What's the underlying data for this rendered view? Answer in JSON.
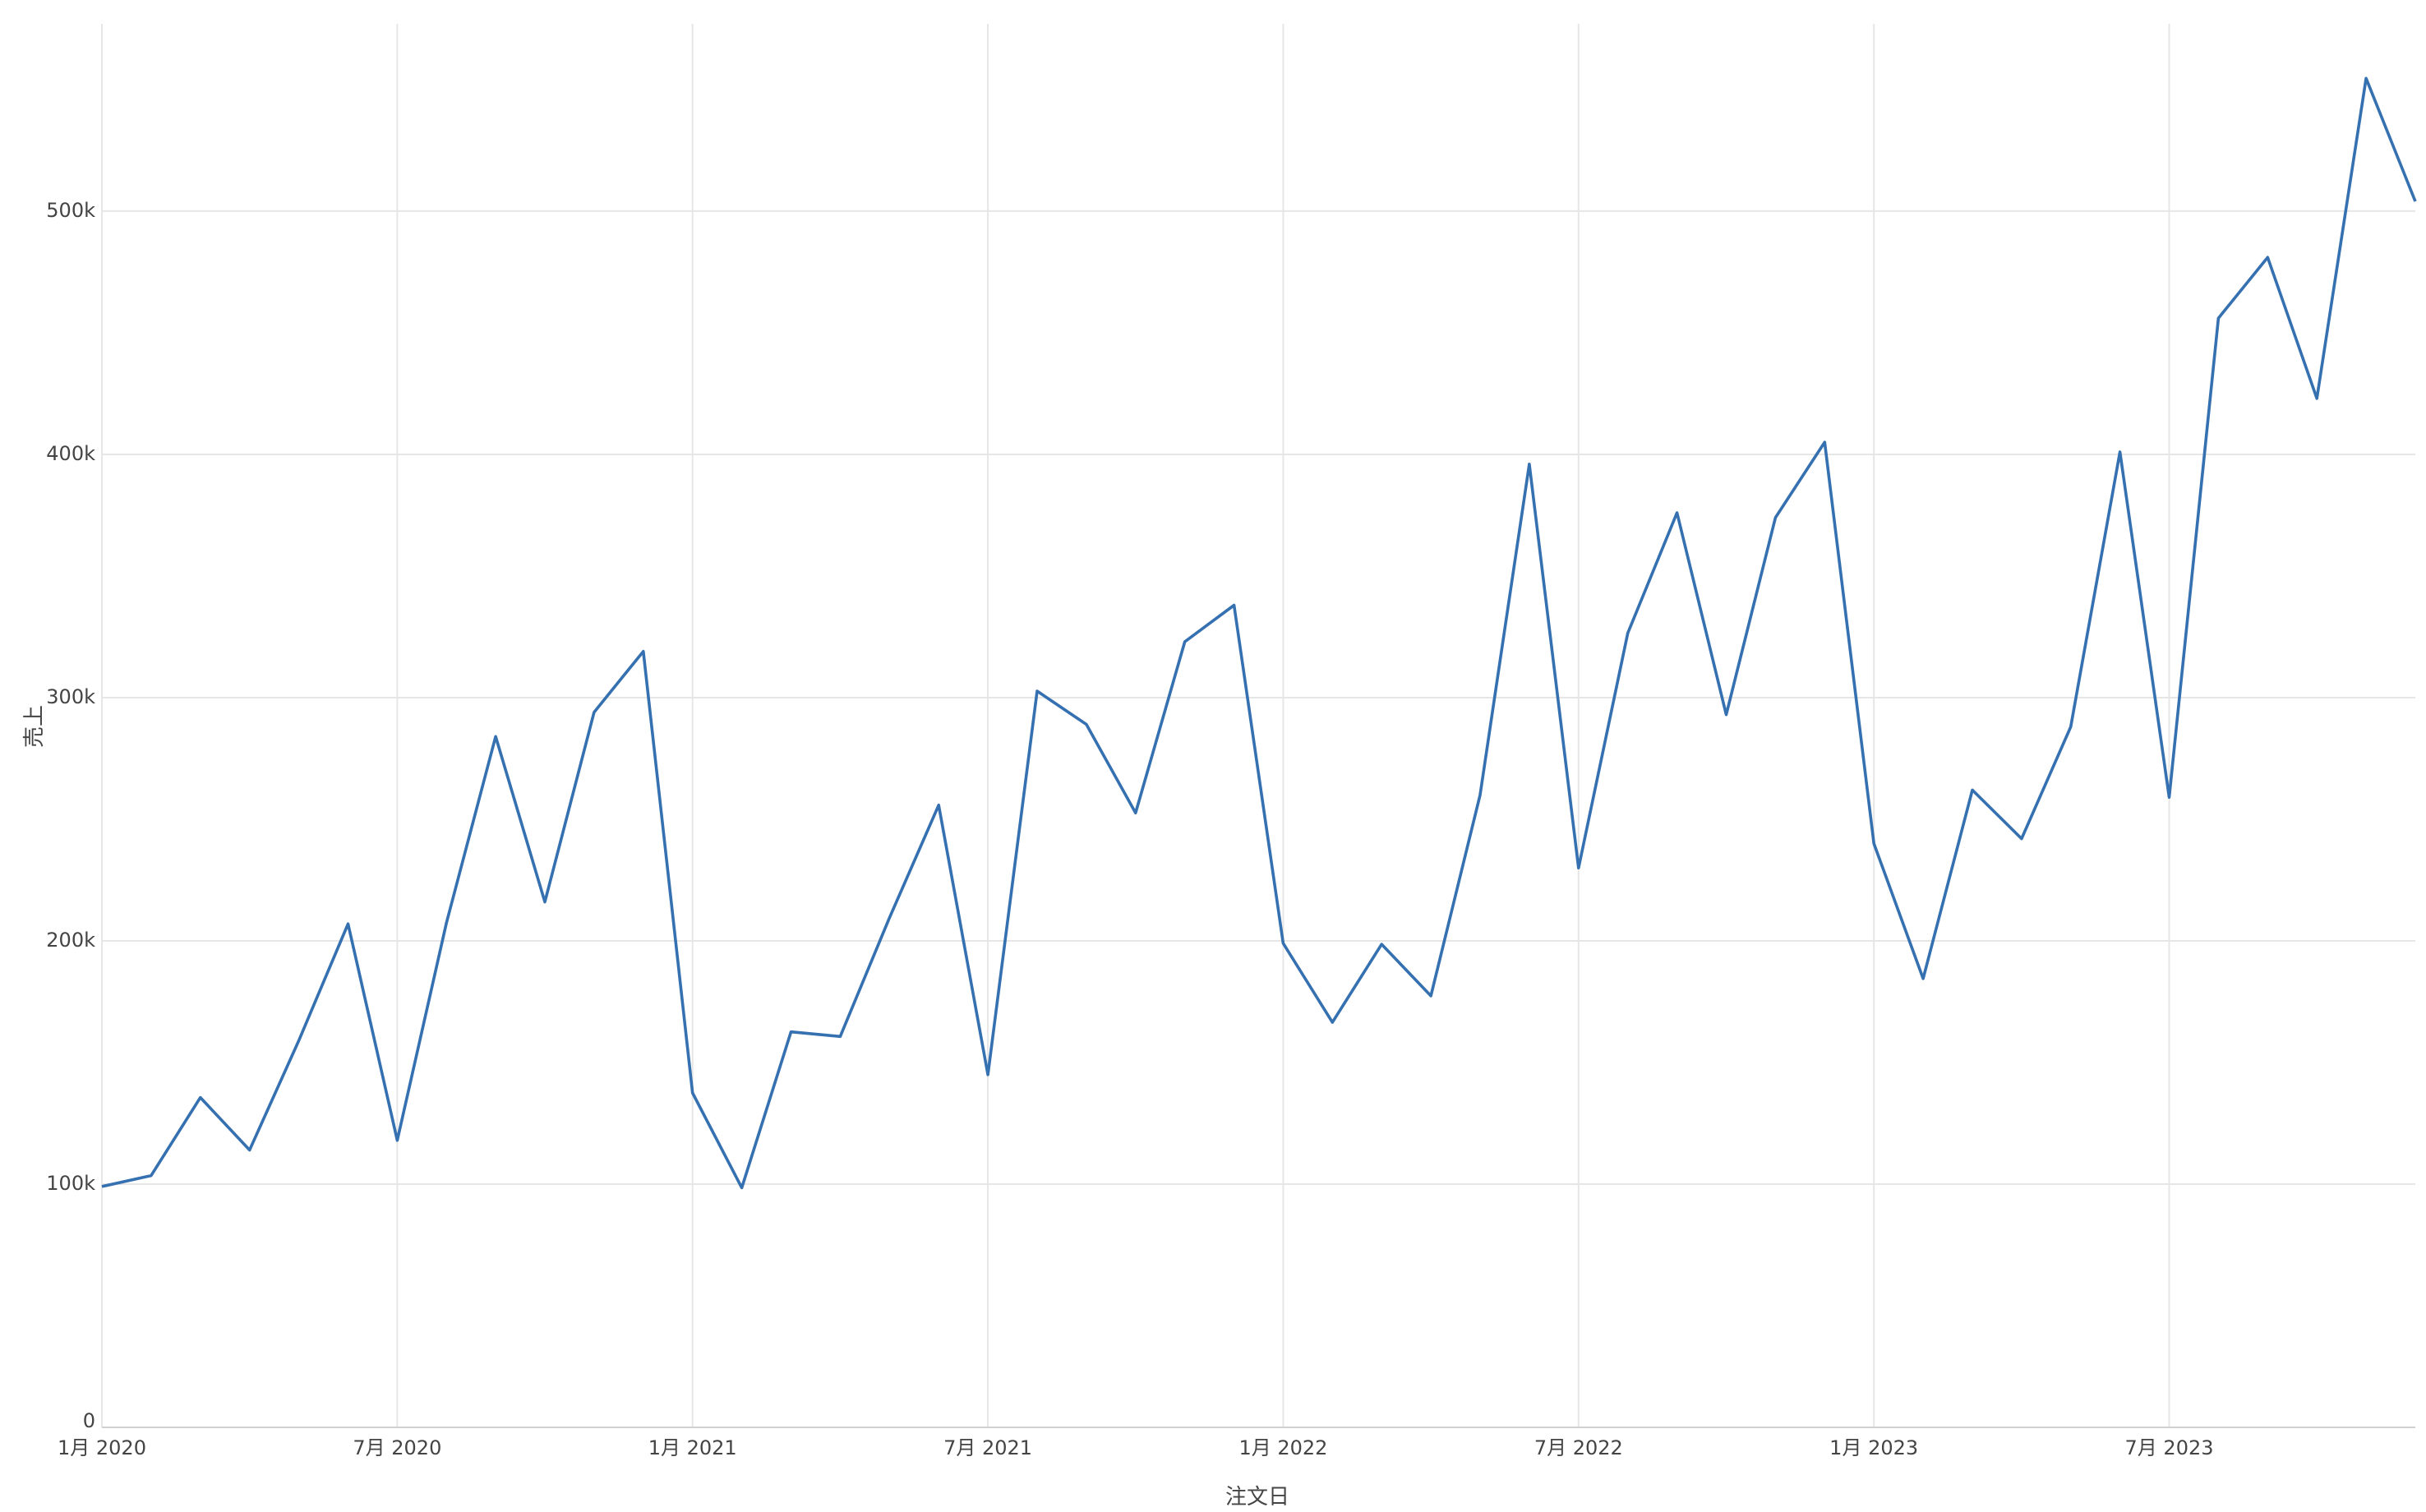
{
  "chart_data": {
    "type": "line",
    "x_label": "注文日",
    "y_label": "売上",
    "x": [
      "2020-01",
      "2020-02",
      "2020-03",
      "2020-04",
      "2020-05",
      "2020-06",
      "2020-07",
      "2020-08",
      "2020-09",
      "2020-10",
      "2020-11",
      "2020-12",
      "2021-01",
      "2021-02",
      "2021-03",
      "2021-04",
      "2021-05",
      "2021-06",
      "2021-07",
      "2021-08",
      "2021-09",
      "2021-10",
      "2021-11",
      "2021-12",
      "2022-01",
      "2022-02",
      "2022-03",
      "2022-04",
      "2022-05",
      "2022-06",
      "2022-07",
      "2022-08",
      "2022-09",
      "2022-10",
      "2022-11",
      "2022-12",
      "2023-01",
      "2023-02",
      "2023-03",
      "2023-04",
      "2023-05",
      "2023-06",
      "2023-07",
      "2023-08",
      "2023-09",
      "2023-10",
      "2023-11",
      "2023-12"
    ],
    "values": [
      99000,
      103500,
      135600,
      114000,
      159000,
      207000,
      118000,
      207500,
      284000,
      216000,
      294000,
      319000,
      137500,
      98500,
      162600,
      160700,
      209500,
      255800,
      145000,
      302700,
      289000,
      252600,
      323000,
      338000,
      199000,
      166500,
      198600,
      177400,
      260000,
      396000,
      230000,
      326500,
      376000,
      293000,
      374000,
      405000,
      240000,
      184500,
      262000,
      242000,
      288000,
      401000,
      259000,
      456000,
      481000,
      423000,
      554600,
      504000
    ],
    "color": "#3570b0",
    "xlim": [
      "2020-01",
      "2023-12"
    ],
    "xticks": [
      {
        "value": "2020-01",
        "label": "1月 2020"
      },
      {
        "value": "2020-07",
        "label": "7月 2020"
      },
      {
        "value": "2021-01",
        "label": "1月 2021"
      },
      {
        "value": "2021-07",
        "label": "7月 2021"
      },
      {
        "value": "2022-01",
        "label": "1月 2022"
      },
      {
        "value": "2022-07",
        "label": "7月 2022"
      },
      {
        "value": "2023-01",
        "label": "1月 2023"
      },
      {
        "value": "2023-07",
        "label": "7月 2023"
      }
    ],
    "ylim": [
      0,
      577000
    ],
    "yticks": [
      0,
      {
        "value": 100000,
        "label": "100k"
      },
      {
        "value": 200000,
        "label": "200k"
      },
      {
        "value": 300000,
        "label": "300k"
      },
      {
        "value": 400000,
        "label": "400k"
      },
      {
        "value": 500000,
        "label": "500k"
      }
    ],
    "grid": true
  }
}
